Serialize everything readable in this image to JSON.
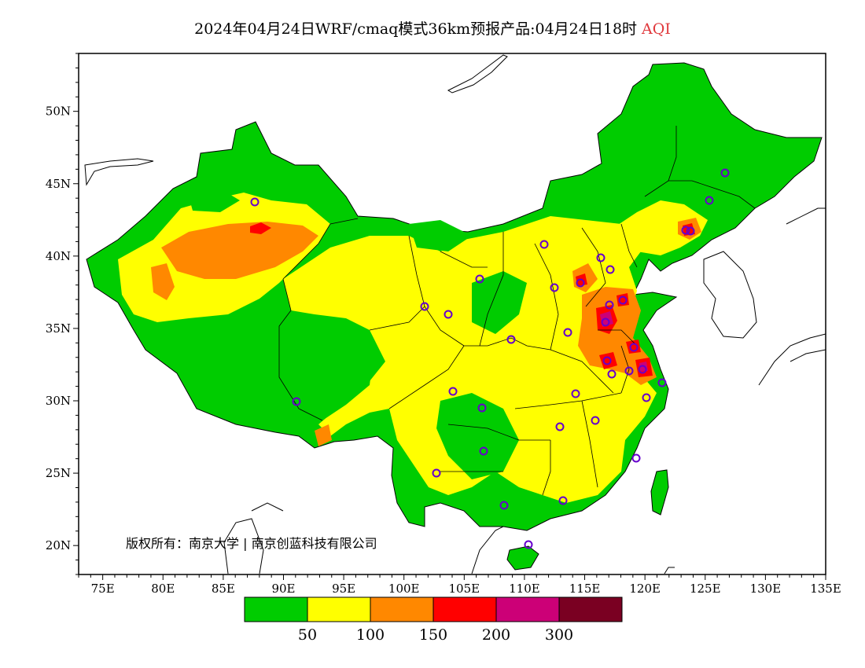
{
  "title": {
    "main": "2024年04月24日WRF/cmaq模式36km预报产品:04月24日18时",
    "variable": "AQI"
  },
  "axes": {
    "lon_ticks": [
      "75E",
      "80E",
      "85E",
      "90E",
      "95E",
      "100E",
      "105E",
      "110E",
      "115E",
      "120E",
      "125E",
      "130E",
      "135E"
    ],
    "lat_ticks": [
      "20N",
      "25N",
      "30N",
      "35N",
      "40N",
      "45N",
      "50N"
    ],
    "lon_range": [
      73,
      135
    ],
    "lat_range": [
      18,
      54
    ]
  },
  "copyright": "版权所有：南京大学 | 南京创蓝科技有限公司",
  "legend": {
    "colors": [
      "#00cc00",
      "#ffff00",
      "#ff8800",
      "#ff0000",
      "#cc0077",
      "#7a0022"
    ],
    "labels": [
      "50",
      "100",
      "150",
      "200",
      "300"
    ],
    "categories": [
      "0-50",
      "50-100",
      "100-150",
      "150-200",
      "200-300",
      ">300"
    ]
  },
  "colors": {
    "good": "#00cc00",
    "moderate": "#ffff00",
    "usg": "#ff8800",
    "unhealthy": "#ff0000",
    "very_unhealthy": "#cc0077",
    "hazardous": "#7a0022",
    "city_marker": "#6600cc"
  }
}
